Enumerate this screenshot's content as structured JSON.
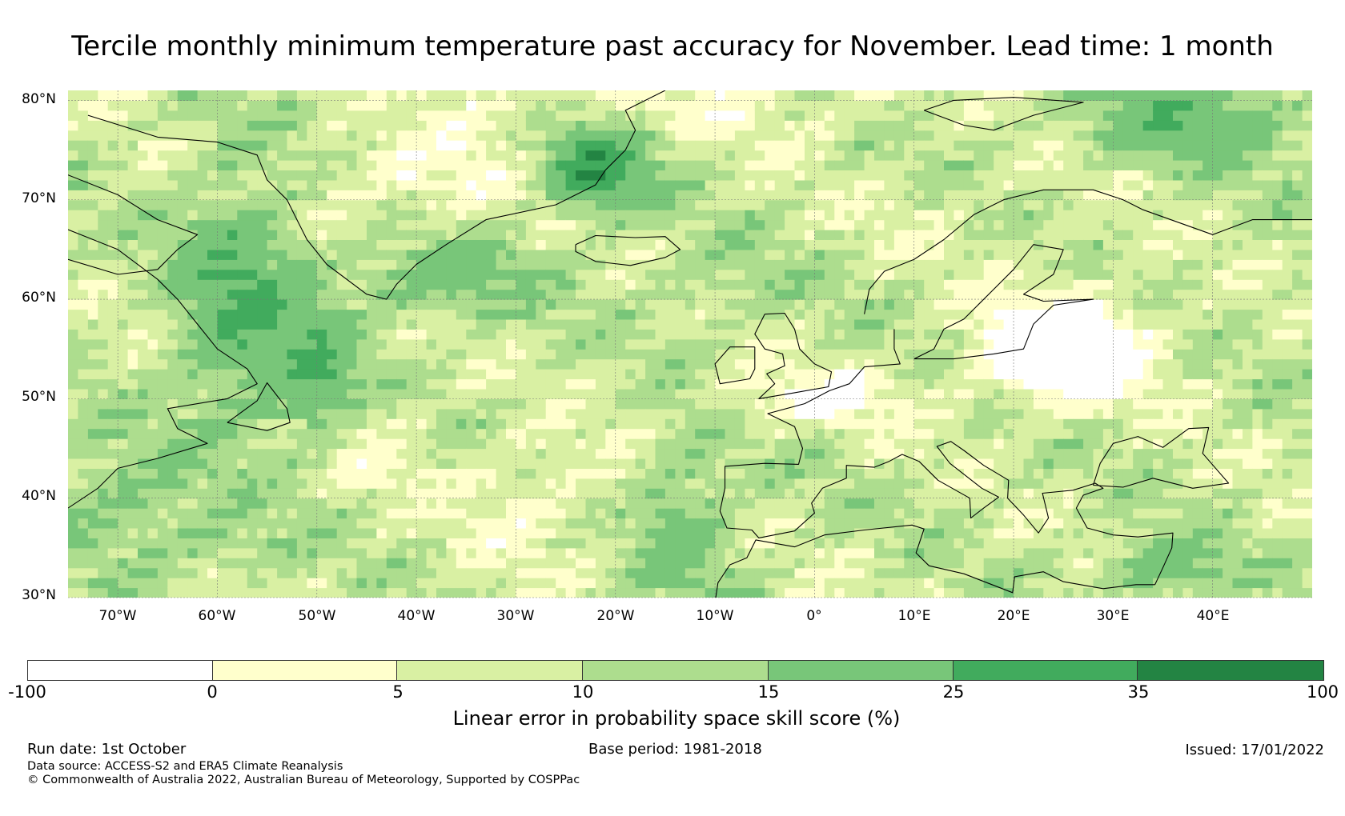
{
  "title": "Tercile monthly minimum temperature past accuracy for November. Lead time: 1 month",
  "axes": {
    "lat_labels": [
      "80°N",
      "70°N",
      "60°N",
      "50°N",
      "40°N",
      "30°N"
    ],
    "lon_labels": [
      "70°W",
      "60°W",
      "50°W",
      "40°W",
      "30°W",
      "20°W",
      "10°W",
      "0°",
      "10°E",
      "20°E",
      "30°E",
      "40°E"
    ]
  },
  "map_extent": {
    "lon_min": -75,
    "lon_max": 50,
    "lat_min": 30,
    "lat_max": 81
  },
  "colorbar": {
    "label": "Linear error in probability space skill score (%)",
    "ticks": [
      "-100",
      "0",
      "5",
      "10",
      "15",
      "25",
      "35",
      "100"
    ],
    "colors": [
      "#ffffff",
      "#ffffcc",
      "#d9f0a3",
      "#addd8e",
      "#78c679",
      "#41ab5d",
      "#238443"
    ]
  },
  "footer": {
    "run_date": "Run date: 1st October",
    "base_period": "Base period: 1981-2018",
    "issued": "Issued: 17/01/2022",
    "data_source": "Data source: ACCESS-S2 and ERA5 Climate Reanalysis",
    "copyright": "© Commonwealth of Australia 2022, Australian Bureau of Meteorology, Supported by COSPPac"
  }
}
